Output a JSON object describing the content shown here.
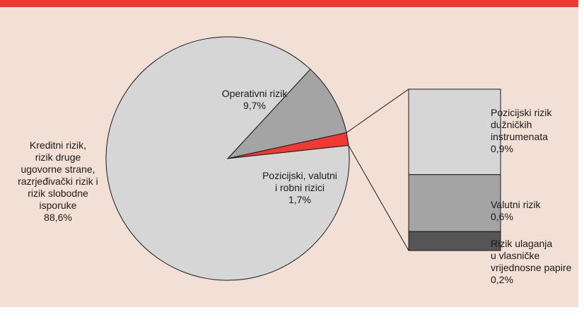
{
  "colors": {
    "header": "#ee3a33",
    "background": "#f2dfd5",
    "kreditni": "#d6d6d6",
    "operativni": "#a4a4a4",
    "pozicijski": "#ee3a33",
    "bar_duznicki": "#d6d6d6",
    "bar_valutni": "#a4a4a4",
    "bar_vlasnicki": "#555555"
  },
  "chart_data": {
    "type": "pie",
    "title": "",
    "pie": {
      "slices": [
        {
          "key": "operativni",
          "label_lines": [
            "Operativni rizik",
            "9,7%"
          ],
          "value": 9.7
        },
        {
          "key": "pozicijski",
          "label_lines": [
            "Pozicijski, valutni",
            "i robni rizici",
            "1,7%"
          ],
          "value": 1.7
        },
        {
          "key": "kreditni",
          "label_lines": [
            "Kreditni rizik,",
            "rizik druge",
            "ugovorne strane,",
            "razrjeđivački rizik i",
            "rizik slobodne",
            "isporuke",
            "88,6%"
          ],
          "value": 88.6
        }
      ]
    },
    "breakdown": {
      "of_slice": "pozicijski",
      "segments": [
        {
          "key": "duznicki",
          "label_lines": [
            "Pozicijski rizik",
            "dužničkih",
            "instrumenata",
            "0,9%"
          ],
          "value": 0.9
        },
        {
          "key": "valutni",
          "label_lines": [
            "Valutni rizik",
            "0,6%"
          ],
          "value": 0.6
        },
        {
          "key": "vlasnicki",
          "label_lines": [
            "Rizik ulaganja",
            "u vlasničke",
            "vrijednosne papire",
            "0,2%"
          ],
          "value": 0.2
        }
      ]
    }
  }
}
